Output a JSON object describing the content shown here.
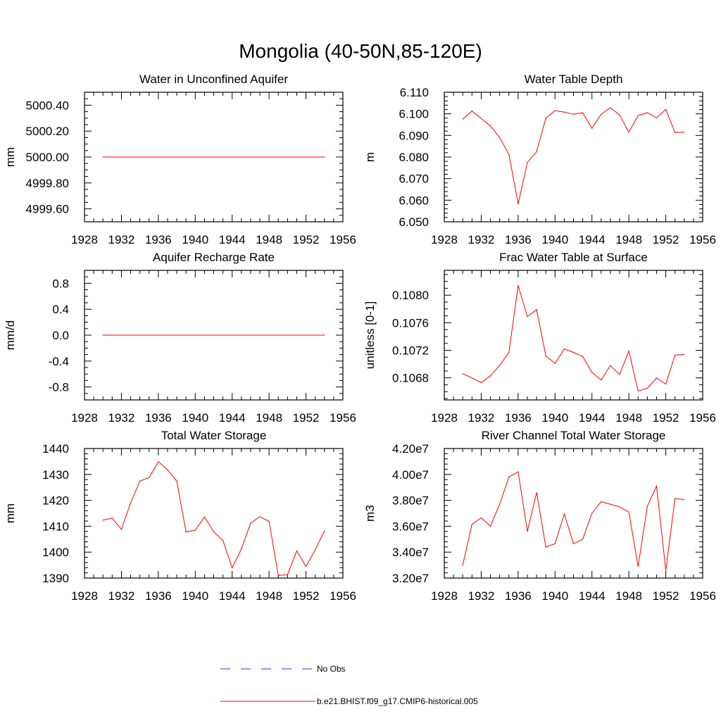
{
  "figure_title": "Mongolia (40-50N,85-120E)",
  "legend": {
    "entries": [
      {
        "label": "No Obs",
        "color": "#3333cc",
        "style": "dashed"
      },
      {
        "label": "b.e21.BHIST.f09_g17.CMIP6-historical.005",
        "color": "#ff0000",
        "style": "solid"
      }
    ]
  },
  "chart_data": [
    {
      "type": "line",
      "title": "Water in Unconfined Aquifer",
      "xlabel": "",
      "ylabel": "mm",
      "xlim": [
        1928,
        1956
      ],
      "ylim": [
        4999.5,
        5000.5
      ],
      "xticks": [
        1928,
        1932,
        1936,
        1940,
        1944,
        1948,
        1952,
        1956
      ],
      "xminor": 1,
      "yticks": [
        4999.6,
        4999.8,
        5000.0,
        5000.2,
        5000.4
      ],
      "ytick_labels": [
        "4999.60",
        "4999.80",
        "5000.00",
        "5000.20",
        "5000.40"
      ],
      "yminor": 0.05,
      "series": [
        {
          "name": "b.e21.BHIST.f09_g17.CMIP6-historical.005",
          "color": "#ff0000",
          "x": [
            1930,
            1954
          ],
          "y": [
            5000.0,
            5000.0
          ]
        }
      ]
    },
    {
      "type": "line",
      "title": "Water Table Depth",
      "xlabel": "",
      "ylabel": "m",
      "xlim": [
        1928,
        1956
      ],
      "ylim": [
        6.05,
        6.11
      ],
      "xticks": [
        1928,
        1932,
        1936,
        1940,
        1944,
        1948,
        1952,
        1956
      ],
      "xminor": 1,
      "yticks": [
        6.05,
        6.06,
        6.07,
        6.08,
        6.09,
        6.1,
        6.11
      ],
      "ytick_labels": [
        "6.050",
        "6.060",
        "6.070",
        "6.080",
        "6.090",
        "6.100",
        "6.110"
      ],
      "yminor": 0.002,
      "series": [
        {
          "name": "b.e21.BHIST.f09_g17.CMIP6-historical.005",
          "color": "#ff0000",
          "x": [
            1930,
            1931,
            1932,
            1933,
            1934,
            1935,
            1936,
            1937,
            1938,
            1939,
            1940,
            1941,
            1942,
            1943,
            1944,
            1945,
            1946,
            1947,
            1948,
            1949,
            1950,
            1951,
            1952,
            1953,
            1954
          ],
          "y": [
            6.0975,
            6.1013,
            6.0978,
            6.0944,
            6.089,
            6.0812,
            6.0583,
            6.0775,
            6.0825,
            6.098,
            6.1015,
            6.1008,
            6.0998,
            6.1005,
            6.0933,
            6.0998,
            6.1028,
            6.0995,
            6.0915,
            6.0992,
            6.1005,
            6.0982,
            6.102,
            6.0913,
            6.0915
          ]
        }
      ]
    },
    {
      "type": "line",
      "title": "Aquifer Recharge Rate",
      "xlabel": "",
      "ylabel": "mm/d",
      "xlim": [
        1928,
        1956
      ],
      "ylim": [
        -1.0,
        1.0
      ],
      "xticks": [
        1928,
        1932,
        1936,
        1940,
        1944,
        1948,
        1952,
        1956
      ],
      "xminor": 1,
      "yticks": [
        -0.8,
        -0.4,
        0.0,
        0.4,
        0.8
      ],
      "ytick_labels": [
        "-0.8",
        "-0.4",
        "0.0",
        "0.4",
        "0.8"
      ],
      "yminor": 0.1,
      "series": [
        {
          "name": "b.e21.BHIST.f09_g17.CMIP6-historical.005",
          "color": "#ff0000",
          "x": [
            1930,
            1954
          ],
          "y": [
            0.0,
            0.0
          ]
        }
      ]
    },
    {
      "type": "line",
      "title": "Frac Water Table at Surface",
      "xlabel": "",
      "ylabel": "unitless [0-1]",
      "xlim": [
        1928,
        1956
      ],
      "ylim": [
        0.10648,
        0.10836
      ],
      "xticks": [
        1928,
        1932,
        1936,
        1940,
        1944,
        1948,
        1952,
        1956
      ],
      "xminor": 1,
      "yticks": [
        0.1068,
        0.1072,
        0.1076,
        0.108
      ],
      "ytick_labels": [
        "0.1068",
        "0.1072",
        "0.1076",
        "0.1080"
      ],
      "yminor": 0.0001,
      "series": [
        {
          "name": "b.e21.BHIST.f09_g17.CMIP6-historical.005",
          "color": "#ff0000",
          "x": [
            1930,
            1931,
            1932,
            1933,
            1934,
            1935,
            1936,
            1937,
            1938,
            1939,
            1940,
            1941,
            1942,
            1943,
            1944,
            1945,
            1946,
            1947,
            1948,
            1949,
            1950,
            1951,
            1952,
            1953,
            1954
          ],
          "y": [
            0.10686,
            0.1068,
            0.10673,
            0.10683,
            0.10698,
            0.10717,
            0.10814,
            0.10769,
            0.10779,
            0.10712,
            0.10701,
            0.10722,
            0.10717,
            0.10711,
            0.10688,
            0.10677,
            0.10698,
            0.10685,
            0.10719,
            0.10661,
            0.10665,
            0.1068,
            0.10671,
            0.10713,
            0.10714
          ]
        }
      ]
    },
    {
      "type": "line",
      "title": "Total Water Storage",
      "xlabel": "",
      "ylabel": "mm",
      "xlim": [
        1928,
        1956
      ],
      "ylim": [
        1390,
        1440
      ],
      "xticks": [
        1928,
        1932,
        1936,
        1940,
        1944,
        1948,
        1952,
        1956
      ],
      "xminor": 1,
      "yticks": [
        1390,
        1400,
        1410,
        1420,
        1430,
        1440
      ],
      "ytick_labels": [
        "1390",
        "1400",
        "1410",
        "1420",
        "1430",
        "1440"
      ],
      "yminor": 2,
      "series": [
        {
          "name": "b.e21.BHIST.f09_g17.CMIP6-historical.005",
          "color": "#ff0000",
          "x": [
            1930,
            1931,
            1932,
            1933,
            1934,
            1935,
            1936,
            1937,
            1938,
            1939,
            1940,
            1941,
            1942,
            1943,
            1944,
            1945,
            1946,
            1947,
            1948,
            1949,
            1950,
            1951,
            1952,
            1953,
            1954
          ],
          "y": [
            1412.4,
            1413.1,
            1408.8,
            1419.0,
            1427.4,
            1428.8,
            1434.9,
            1431.8,
            1427.4,
            1407.8,
            1408.5,
            1413.6,
            1407.9,
            1404.5,
            1394.0,
            1401.2,
            1411.2,
            1413.7,
            1411.9,
            1391.0,
            1391.3,
            1400.5,
            1394.5,
            1400.9,
            1408.2
          ]
        }
      ]
    },
    {
      "type": "line",
      "title": "River Channel Total Water Storage",
      "xlabel": "",
      "ylabel": "m3",
      "xlim": [
        1928,
        1956
      ],
      "ylim": [
        32000000,
        42000000
      ],
      "xticks": [
        1928,
        1932,
        1936,
        1940,
        1944,
        1948,
        1952,
        1956
      ],
      "xminor": 1,
      "yticks": [
        32000000,
        34000000,
        36000000,
        38000000,
        40000000,
        42000000
      ],
      "ytick_labels": [
        "3.20e7",
        "3.40e7",
        "3.60e7",
        "3.80e7",
        "4.00e7",
        "4.20e7"
      ],
      "yminor": 400000,
      "series": [
        {
          "name": "b.e21.BHIST.f09_g17.CMIP6-historical.005",
          "color": "#ff0000",
          "x": [
            1930,
            1931,
            1932,
            1933,
            1934,
            1935,
            1936,
            1937,
            1938,
            1939,
            1940,
            1941,
            1942,
            1943,
            1944,
            1945,
            1946,
            1947,
            1948,
            1949,
            1950,
            1951,
            1952,
            1953,
            1954
          ],
          "y": [
            33000000,
            36150000,
            36650000,
            36000000,
            37700000,
            39800000,
            40200000,
            35600000,
            38600000,
            34400000,
            34650000,
            36950000,
            34650000,
            35000000,
            37000000,
            37900000,
            37700000,
            37500000,
            37100000,
            32900000,
            37550000,
            39100000,
            32600000,
            38150000,
            38050000
          ]
        }
      ]
    }
  ]
}
